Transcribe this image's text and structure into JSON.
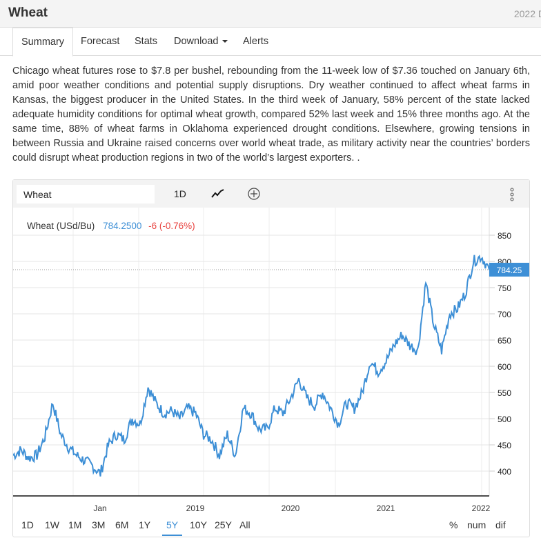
{
  "header": {
    "title": "Wheat",
    "date": "2022 D"
  },
  "tabs": [
    {
      "label": "Summary"
    },
    {
      "label": "Forecast"
    },
    {
      "label": "Stats"
    },
    {
      "label": "Download"
    },
    {
      "label": "Alerts"
    }
  ],
  "description": "Chicago wheat futures rose to $7.8 per bushel, rebounding from the 11-week low of $7.36 touched on January 6th, amid poor weather conditions and potential supply disruptions. Dry weather continued to affect wheat farms in Kansas, the biggest producer in the United States. In the third week of January, 58% percent of the state lacked adequate humidity conditions for optimal wheat growth, compared 52% last week and 15% three months ago. At the same time, 88% of wheat farms in Oklahoma experienced drought conditions. Elsewhere, growing tensions in between Russia and Ukraine raised concerns over world wheat trade, as military activity near the countries’ borders could disrupt wheat production regions in two of the world’s largest exporters. .",
  "toolbar": {
    "symbol": "Wheat",
    "interval": "1D",
    "icons": [
      "line-chart-icon",
      "add-circle-icon",
      "more-vertical-icon"
    ]
  },
  "legend": {
    "name": "Wheat (USd/Bu)",
    "value": "784.2500",
    "change": "-6 (-0.76%)"
  },
  "colors": {
    "line": "#3d8fd6",
    "down": "#e8423f"
  },
  "ranges": [
    "1D",
    "1W",
    "1M",
    "3M",
    "6M",
    "1Y",
    "5Y",
    "10Y",
    "25Y",
    "All"
  ],
  "selected_range": "5Y",
  "modes": [
    "%",
    "num",
    "dif"
  ],
  "chart_data": {
    "type": "line",
    "title": "Wheat (USd/Bu)",
    "x_ticks": [
      "Jan",
      "2019",
      "2020",
      "2021",
      "2022"
    ],
    "y_ticks": [
      400,
      450,
      500,
      550,
      600,
      650,
      700,
      750,
      800,
      850
    ],
    "ylim": [
      350,
      870
    ],
    "last_value_label": "784.25",
    "x_start": "2017-02",
    "x_step": "month",
    "values": [
      430,
      440,
      425,
      430,
      465,
      530,
      470,
      445,
      430,
      420,
      410,
      395,
      450,
      470,
      460,
      500,
      490,
      560,
      530,
      510,
      515,
      500,
      520,
      510,
      470,
      460,
      430,
      470,
      430,
      520,
      510,
      480,
      480,
      520,
      510,
      540,
      575,
      540,
      525,
      550,
      520,
      490,
      530,
      520,
      550,
      610,
      590,
      610,
      640,
      660,
      640,
      630,
      760,
      680,
      630,
      700,
      710,
      740,
      800,
      810,
      784
    ]
  }
}
